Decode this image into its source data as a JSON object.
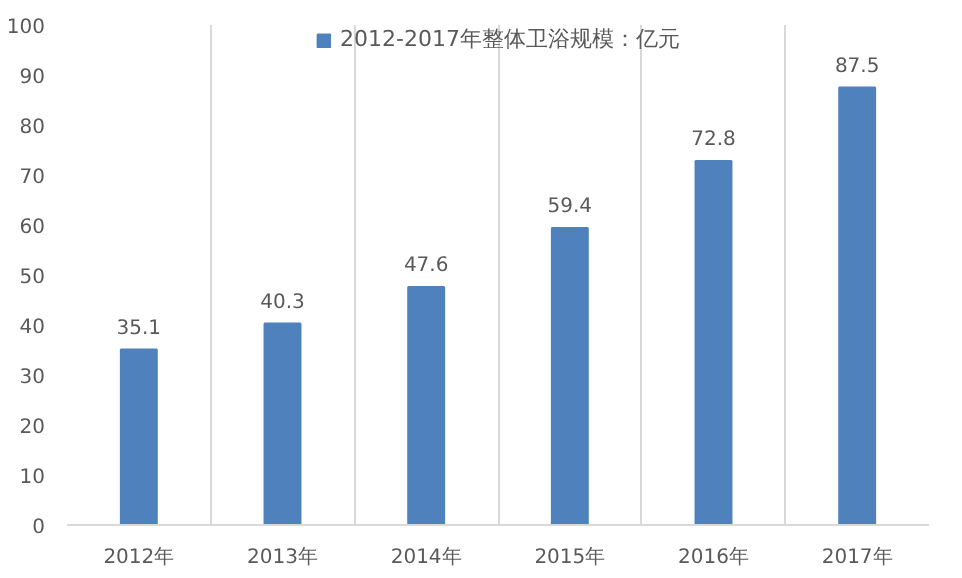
{
  "chart_data": {
    "type": "bar",
    "categories": [
      "2012年",
      "2013年",
      "2014年",
      "2015年",
      "2016年",
      "2017年"
    ],
    "series": [
      {
        "name": "2012-2017年整体卫浴规模：亿元",
        "color": "#4f81bd",
        "values": [
          35.1,
          40.3,
          47.6,
          59.4,
          72.8,
          87.5
        ]
      }
    ],
    "ylim": [
      0,
      100
    ],
    "yticks": [
      0,
      10,
      20,
      30,
      40,
      50,
      60,
      70,
      80,
      90,
      100
    ],
    "grid": "x",
    "legend": "top",
    "data_labels": true
  }
}
